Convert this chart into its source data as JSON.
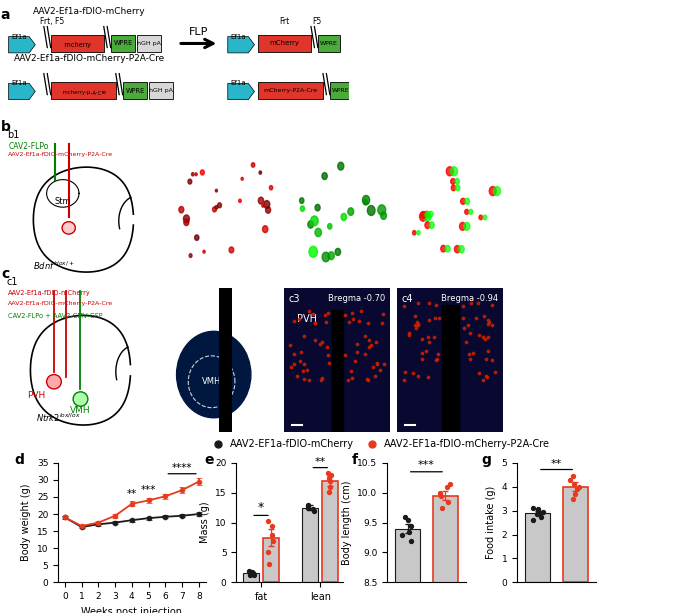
{
  "panel_d": {
    "weeks": [
      0,
      1,
      2,
      3,
      4,
      5,
      6,
      7,
      8
    ],
    "black_mean": [
      19.0,
      16.2,
      17.0,
      17.5,
      18.2,
      18.8,
      19.2,
      19.5,
      20.0
    ],
    "black_sem": [
      0.5,
      0.4,
      0.4,
      0.4,
      0.4,
      0.4,
      0.4,
      0.5,
      0.5
    ],
    "red_mean": [
      19.0,
      16.5,
      17.5,
      19.5,
      23.0,
      24.0,
      25.2,
      27.0,
      29.5
    ],
    "red_sem": [
      0.5,
      0.4,
      0.5,
      0.6,
      0.7,
      0.7,
      0.8,
      0.9,
      1.0
    ],
    "xlabel": "Weeks post injection",
    "ylabel": "Body weight (g)",
    "ylim": [
      0,
      35
    ],
    "yticks": [
      0,
      5,
      10,
      15,
      20,
      25,
      30,
      35
    ]
  },
  "panel_e": {
    "categories": [
      "fat",
      "lean"
    ],
    "black_mean": [
      1.5,
      12.5
    ],
    "black_sem": [
      0.3,
      0.4
    ],
    "red_mean": [
      7.5,
      17.0
    ],
    "red_sem": [
      1.5,
      0.8
    ],
    "black_dots_fat": [
      1.2,
      1.3,
      1.5,
      1.7,
      1.9
    ],
    "black_dots_lean": [
      12.0,
      12.2,
      12.5,
      12.7,
      13.0
    ],
    "red_dots_fat": [
      3.0,
      5.0,
      7.0,
      8.0,
      9.5,
      10.2
    ],
    "red_dots_lean": [
      15.2,
      16.0,
      17.0,
      17.5,
      18.0,
      18.3
    ],
    "ylabel": "Mass (g)",
    "ylim": [
      0,
      20
    ],
    "yticks": [
      0,
      5,
      10,
      15,
      20
    ]
  },
  "panel_f": {
    "black_mean": [
      9.4
    ],
    "black_sem": [
      0.07
    ],
    "red_mean": [
      9.95
    ],
    "red_sem": [
      0.08
    ],
    "black_dots": [
      9.2,
      9.3,
      9.35,
      9.45,
      9.55,
      9.6
    ],
    "red_dots": [
      9.75,
      9.85,
      9.95,
      10.0,
      10.1,
      10.15
    ],
    "ylabel": "Body length (cm)",
    "ylim": [
      8.5,
      10.5
    ],
    "yticks": [
      8.5,
      9.0,
      9.5,
      10.0,
      10.5
    ]
  },
  "panel_g": {
    "black_mean": [
      2.9
    ],
    "black_sem": [
      0.1
    ],
    "red_mean": [
      4.0
    ],
    "red_sem": [
      0.18
    ],
    "black_dots": [
      2.6,
      2.75,
      2.85,
      2.9,
      2.95,
      3.0,
      3.05,
      3.1
    ],
    "red_dots": [
      3.5,
      3.7,
      3.9,
      4.0,
      4.1,
      4.3,
      4.45
    ],
    "ylabel": "Food intake (g)",
    "ylim": [
      0,
      5
    ],
    "yticks": [
      0,
      1,
      2,
      3,
      4,
      5
    ]
  },
  "colors": {
    "black": "#1a1a1a",
    "red": "#e8391d",
    "bar_gray": "#c8c8c8"
  },
  "legend": {
    "label_black": "AAV2-EF1a-fDIO-mCherry",
    "label_red": "AAV2-EF1a-fDIO-mCherry-P2A-Cre"
  },
  "panel_a": {
    "title_top": "AAV2-Ef1a-fDIO-mCherry",
    "title_bot": "AAV2-Ef1a-fDIO-mCherry-P2A-Cre",
    "flp_label": "FLP",
    "frt_f5_label": "Frt, F5",
    "frt_label": "Frt",
    "f5_label": "F5"
  }
}
